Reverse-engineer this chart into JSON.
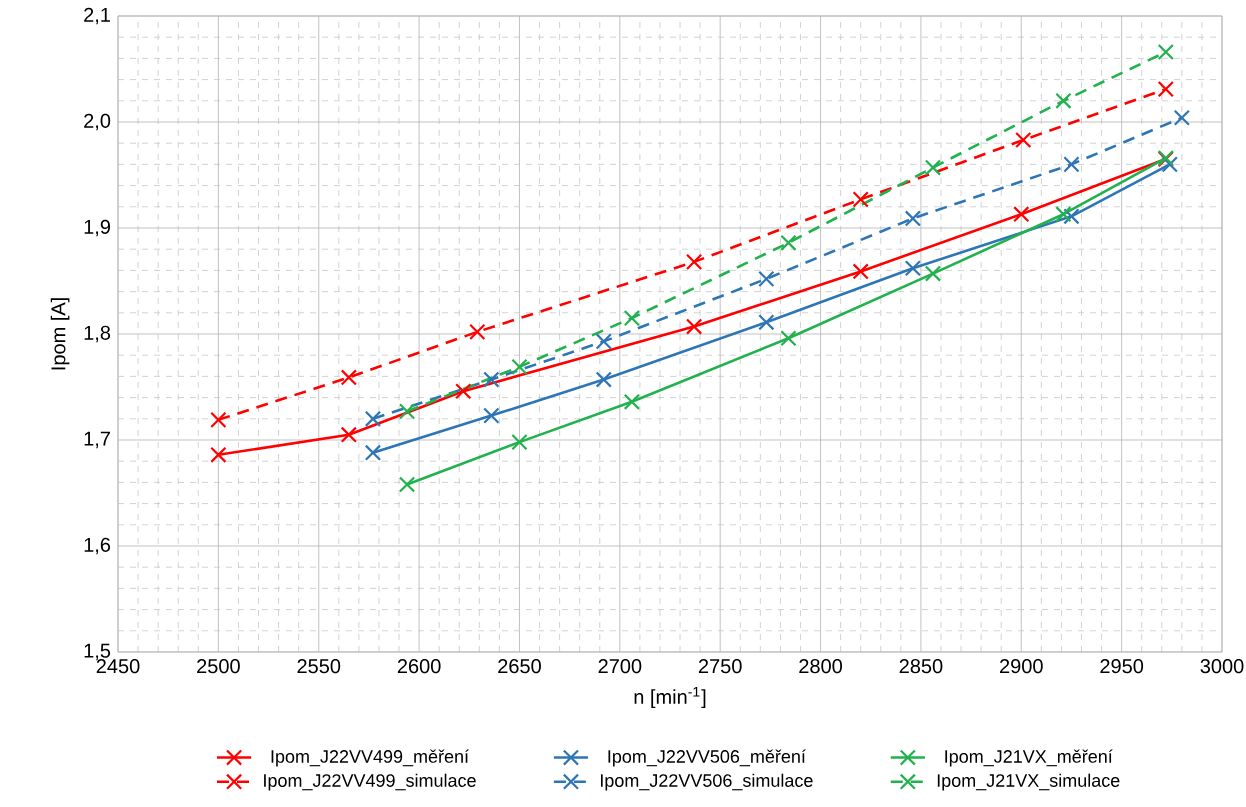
{
  "chart_data": {
    "type": "line",
    "xlabel": "n [min$^{-1}$]",
    "ylabel": "Ipom [A]",
    "xlim": [
      2450,
      3000
    ],
    "ylim": [
      1.5,
      2.1
    ],
    "xticks": [
      2450,
      2500,
      2550,
      2600,
      2650,
      2700,
      2750,
      2800,
      2850,
      2900,
      2950,
      3000
    ],
    "yticks": [
      {
        "value": 1.5,
        "label": "1,5"
      },
      {
        "value": 1.6,
        "label": "1,6"
      },
      {
        "value": 1.7,
        "label": "1,7"
      },
      {
        "value": 1.8,
        "label": "1,8"
      },
      {
        "value": 1.9,
        "label": "1,9"
      },
      {
        "value": 2.0,
        "label": "2,0"
      },
      {
        "value": 2.1,
        "label": "2,1"
      }
    ],
    "grid": true,
    "legend": "bottom",
    "marker": "cross",
    "series": [
      {
        "name": "Ipom_J22VV499_měření",
        "color": "#ff0000",
        "line_style": "solid",
        "x": [
          2500,
          2565,
          2622,
          2737,
          2820,
          2900,
          2972
        ],
        "values": [
          1.686,
          1.705,
          1.746,
          1.807,
          1.859,
          1.913,
          1.965
        ]
      },
      {
        "name": "Ipom_J22VV506_měření",
        "color": "#2e75b6",
        "line_style": "solid",
        "x": [
          2577,
          2636,
          2692,
          2773,
          2846,
          2925,
          2974
        ],
        "values": [
          1.688,
          1.723,
          1.757,
          1.811,
          1.862,
          1.911,
          1.96
        ]
      },
      {
        "name": "Ipom_J21VX_měření",
        "color": "#21b14d",
        "line_style": "solid",
        "x": [
          2594,
          2650,
          2706,
          2784,
          2856,
          2921,
          2972
        ],
        "values": [
          1.658,
          1.698,
          1.736,
          1.796,
          1.857,
          1.913,
          1.966
        ]
      },
      {
        "name": "Ipom_J22VV499_simulace",
        "color": "#ff0000",
        "line_style": "dashed",
        "x": [
          2500,
          2565,
          2629,
          2737,
          2820,
          2901,
          2972
        ],
        "values": [
          1.719,
          1.759,
          1.802,
          1.868,
          1.927,
          1.983,
          2.031
        ]
      },
      {
        "name": "Ipom_J22VV506_simulace",
        "color": "#2e75b6",
        "line_style": "dashed",
        "x": [
          2577,
          2636,
          2692,
          2773,
          2846,
          2925,
          2980
        ],
        "values": [
          1.72,
          1.757,
          1.793,
          1.852,
          1.909,
          1.96,
          2.004
        ]
      },
      {
        "name": "Ipom_J21VX_simulace",
        "color": "#21b14d",
        "line_style": "dashed",
        "x": [
          2594,
          2650,
          2706,
          2784,
          2856,
          2921,
          2972
        ],
        "values": [
          1.727,
          1.769,
          1.815,
          1.886,
          1.957,
          2.02,
          2.066
        ]
      }
    ]
  }
}
